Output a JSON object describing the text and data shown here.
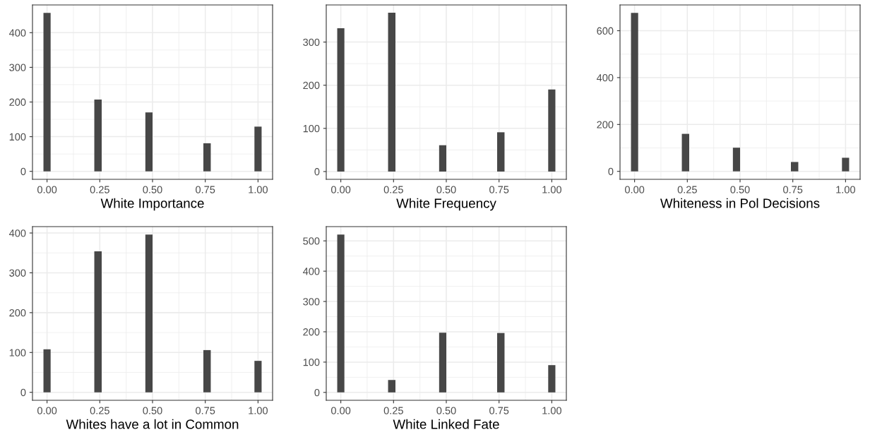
{
  "chart_data": [
    {
      "type": "histogram",
      "xlabel": "White Importance",
      "color": "#474747",
      "grid": true,
      "bins": [
        -0.017,
        0.017,
        0.052,
        0.086,
        0.121,
        0.155,
        0.19,
        0.224,
        0.259,
        0.293,
        0.328,
        0.362,
        0.397,
        0.431,
        0.466,
        0.5,
        0.534,
        0.569,
        0.603,
        0.638,
        0.672,
        0.707,
        0.741,
        0.776,
        0.81,
        0.845,
        0.879,
        0.914,
        0.948,
        0.983,
        1.017
      ],
      "values": [
        457,
        0,
        0,
        0,
        0,
        0,
        0,
        207,
        0,
        0,
        0,
        0,
        0,
        0,
        170,
        0,
        0,
        0,
        0,
        0,
        0,
        0,
        81,
        0,
        0,
        0,
        0,
        0,
        0,
        129
      ],
      "xlim": [
        -0.069,
        1.069
      ],
      "xticks": [
        {
          "value": 0,
          "label": "0.00"
        },
        {
          "value": 0.25,
          "label": "0.25"
        },
        {
          "value": 0.5,
          "label": "0.50"
        },
        {
          "value": 0.75,
          "label": "0.75"
        },
        {
          "value": 1,
          "label": "1.00"
        }
      ],
      "ylim": [
        -23,
        480
      ],
      "yticks": [
        0,
        100,
        200,
        300,
        400
      ]
    },
    {
      "type": "histogram",
      "xlabel": "White Frequency",
      "color": "#474747",
      "grid": true,
      "bins": [
        -0.017,
        0.017,
        0.052,
        0.086,
        0.121,
        0.155,
        0.19,
        0.224,
        0.259,
        0.293,
        0.328,
        0.362,
        0.397,
        0.431,
        0.466,
        0.5,
        0.534,
        0.569,
        0.603,
        0.638,
        0.672,
        0.707,
        0.741,
        0.776,
        0.81,
        0.845,
        0.879,
        0.914,
        0.948,
        0.983,
        1.017
      ],
      "values": [
        332,
        0,
        0,
        0,
        0,
        0,
        0,
        368,
        0,
        0,
        0,
        0,
        0,
        0,
        61,
        0,
        0,
        0,
        0,
        0,
        0,
        0,
        91,
        0,
        0,
        0,
        0,
        0,
        0,
        190
      ],
      "xlim": [
        -0.069,
        1.069
      ],
      "xticks": [
        {
          "value": 0,
          "label": "0.00"
        },
        {
          "value": 0.25,
          "label": "0.25"
        },
        {
          "value": 0.5,
          "label": "0.50"
        },
        {
          "value": 0.75,
          "label": "0.75"
        },
        {
          "value": 1,
          "label": "1.00"
        }
      ],
      "ylim": [
        -18,
        386
      ],
      "yticks": [
        0,
        100,
        200,
        300
      ]
    },
    {
      "type": "histogram",
      "xlabel": "Whiteness in Pol Decisions",
      "color": "#474747",
      "grid": true,
      "bins": [
        -0.017,
        0.017,
        0.052,
        0.086,
        0.121,
        0.155,
        0.19,
        0.224,
        0.259,
        0.293,
        0.328,
        0.362,
        0.397,
        0.431,
        0.466,
        0.5,
        0.534,
        0.569,
        0.603,
        0.638,
        0.672,
        0.707,
        0.741,
        0.776,
        0.81,
        0.845,
        0.879,
        0.914,
        0.948,
        0.983,
        1.017
      ],
      "values": [
        676,
        0,
        0,
        0,
        0,
        0,
        0,
        160,
        0,
        0,
        0,
        0,
        0,
        0,
        101,
        0,
        0,
        0,
        0,
        0,
        0,
        0,
        40,
        0,
        0,
        0,
        0,
        0,
        0,
        58
      ],
      "xlim": [
        -0.069,
        1.069
      ],
      "xticks": [
        {
          "value": 0,
          "label": "0.00"
        },
        {
          "value": 0.25,
          "label": "0.25"
        },
        {
          "value": 0.5,
          "label": "0.50"
        },
        {
          "value": 0.75,
          "label": "0.75"
        },
        {
          "value": 1,
          "label": "1.00"
        }
      ],
      "ylim": [
        -34,
        710
      ],
      "yticks": [
        0,
        200,
        400,
        600
      ]
    },
    {
      "type": "histogram",
      "xlabel": "Whites have a lot in Common",
      "color": "#474747",
      "grid": true,
      "bins": [
        -0.017,
        0.017,
        0.052,
        0.086,
        0.121,
        0.155,
        0.19,
        0.224,
        0.259,
        0.293,
        0.328,
        0.362,
        0.397,
        0.431,
        0.466,
        0.5,
        0.534,
        0.569,
        0.603,
        0.638,
        0.672,
        0.707,
        0.741,
        0.776,
        0.81,
        0.845,
        0.879,
        0.914,
        0.948,
        0.983,
        1.017
      ],
      "values": [
        108,
        0,
        0,
        0,
        0,
        0,
        0,
        354,
        0,
        0,
        0,
        0,
        0,
        0,
        396,
        0,
        0,
        0,
        0,
        0,
        0,
        0,
        106,
        0,
        0,
        0,
        0,
        0,
        0,
        79
      ],
      "xlim": [
        -0.069,
        1.069
      ],
      "xticks": [
        {
          "value": 0,
          "label": "0.00"
        },
        {
          "value": 0.25,
          "label": "0.25"
        },
        {
          "value": 0.5,
          "label": "0.50"
        },
        {
          "value": 0.75,
          "label": "0.75"
        },
        {
          "value": 1,
          "label": "1.00"
        }
      ],
      "ylim": [
        -20,
        416
      ],
      "yticks": [
        0,
        100,
        200,
        300,
        400
      ]
    },
    {
      "type": "histogram",
      "xlabel": "White Linked Fate",
      "color": "#474747",
      "grid": true,
      "bins": [
        -0.017,
        0.017,
        0.052,
        0.086,
        0.121,
        0.155,
        0.19,
        0.224,
        0.259,
        0.293,
        0.328,
        0.362,
        0.397,
        0.431,
        0.466,
        0.5,
        0.534,
        0.569,
        0.603,
        0.638,
        0.672,
        0.707,
        0.741,
        0.776,
        0.81,
        0.845,
        0.879,
        0.914,
        0.948,
        0.983,
        1.017
      ],
      "values": [
        521,
        0,
        0,
        0,
        0,
        0,
        0,
        41,
        0,
        0,
        0,
        0,
        0,
        0,
        197,
        0,
        0,
        0,
        0,
        0,
        0,
        0,
        196,
        0,
        0,
        0,
        0,
        0,
        0,
        90
      ],
      "xlim": [
        -0.069,
        1.069
      ],
      "xticks": [
        {
          "value": 0,
          "label": "0.00"
        },
        {
          "value": 0.25,
          "label": "0.25"
        },
        {
          "value": 0.5,
          "label": "0.50"
        },
        {
          "value": 0.75,
          "label": "0.75"
        },
        {
          "value": 1,
          "label": "1.00"
        }
      ],
      "ylim": [
        -26,
        547
      ],
      "yticks": [
        0,
        100,
        200,
        300,
        400,
        500
      ]
    }
  ]
}
